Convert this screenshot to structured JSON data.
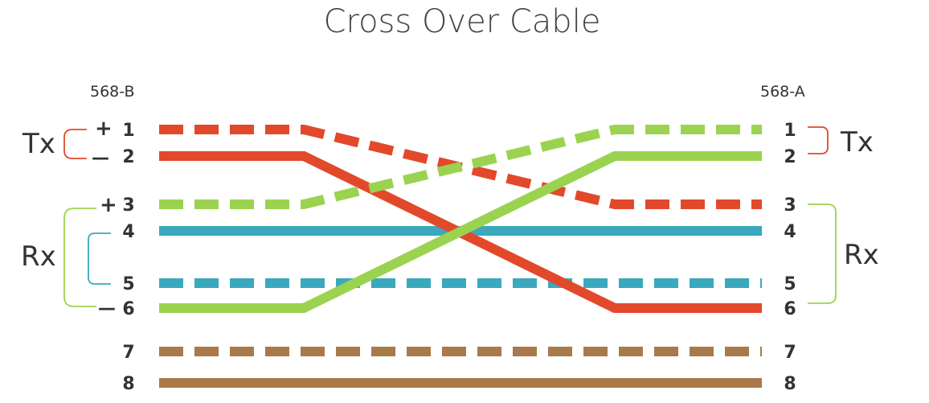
{
  "title": "Cross Over Cable",
  "left": {
    "standard": "568-B",
    "pins": [
      "1",
      "2",
      "3",
      "4",
      "5",
      "6",
      "7",
      "8"
    ],
    "signs": {
      "plus1": "+",
      "minus2": "—",
      "plus3": "+",
      "minus6": "—"
    },
    "tx_label": "Tx",
    "rx_label": "Rx"
  },
  "right": {
    "standard": "568-A",
    "pins": [
      "1",
      "2",
      "3",
      "4",
      "5",
      "6",
      "7",
      "8"
    ],
    "tx_label": "Tx",
    "rx_label": "Rx"
  },
  "colors": {
    "orange": "#e2492b",
    "green": "#9bd350",
    "blue": "#3aa8bd",
    "brown": "#a87a4a",
    "tx_bracket": "#e2492b",
    "rx_bracket_outer": "#9bd350",
    "rx_bracket_inner": "#3aa8bd",
    "text": "#333333"
  },
  "wires": [
    {
      "name": "orange-white",
      "color": "orange",
      "dashed": true,
      "from_pin": 1,
      "to_pin": 3
    },
    {
      "name": "orange",
      "color": "orange",
      "dashed": false,
      "from_pin": 2,
      "to_pin": 6
    },
    {
      "name": "green-white",
      "color": "green",
      "dashed": true,
      "from_pin": 3,
      "to_pin": 1
    },
    {
      "name": "blue",
      "color": "blue",
      "dashed": false,
      "from_pin": 4,
      "to_pin": 4
    },
    {
      "name": "blue-white",
      "color": "blue",
      "dashed": true,
      "from_pin": 5,
      "to_pin": 5
    },
    {
      "name": "green",
      "color": "green",
      "dashed": false,
      "from_pin": 6,
      "to_pin": 2
    },
    {
      "name": "brown-white",
      "color": "brown",
      "dashed": true,
      "from_pin": 7,
      "to_pin": 7
    },
    {
      "name": "brown",
      "color": "brown",
      "dashed": false,
      "from_pin": 8,
      "to_pin": 8
    }
  ]
}
